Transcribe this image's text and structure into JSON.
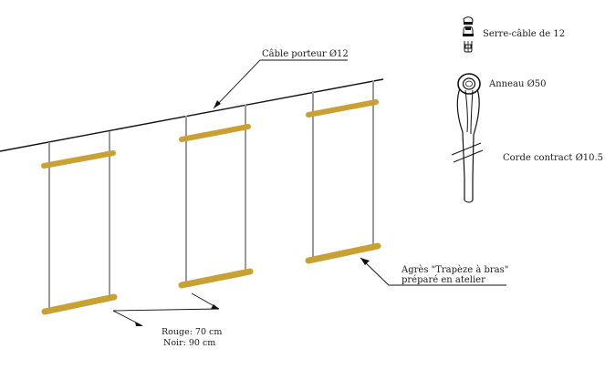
{
  "labels": {
    "cable": "Câble porteur Ø12",
    "serre_cable": "Serre-câble de 12",
    "anneau": "Anneau Ø50",
    "corde": "Corde  contract Ø10.5",
    "agres_line1": "Agrès \"Trapèze à bras\"",
    "agres_line2": "préparé en atelier",
    "spacing_line1": "Rouge: 70 cm",
    "spacing_line2": "Noir: 90 cm"
  },
  "colors": {
    "bar": "#C9A033",
    "rope": "#9a9a9a",
    "line": "#111111"
  }
}
